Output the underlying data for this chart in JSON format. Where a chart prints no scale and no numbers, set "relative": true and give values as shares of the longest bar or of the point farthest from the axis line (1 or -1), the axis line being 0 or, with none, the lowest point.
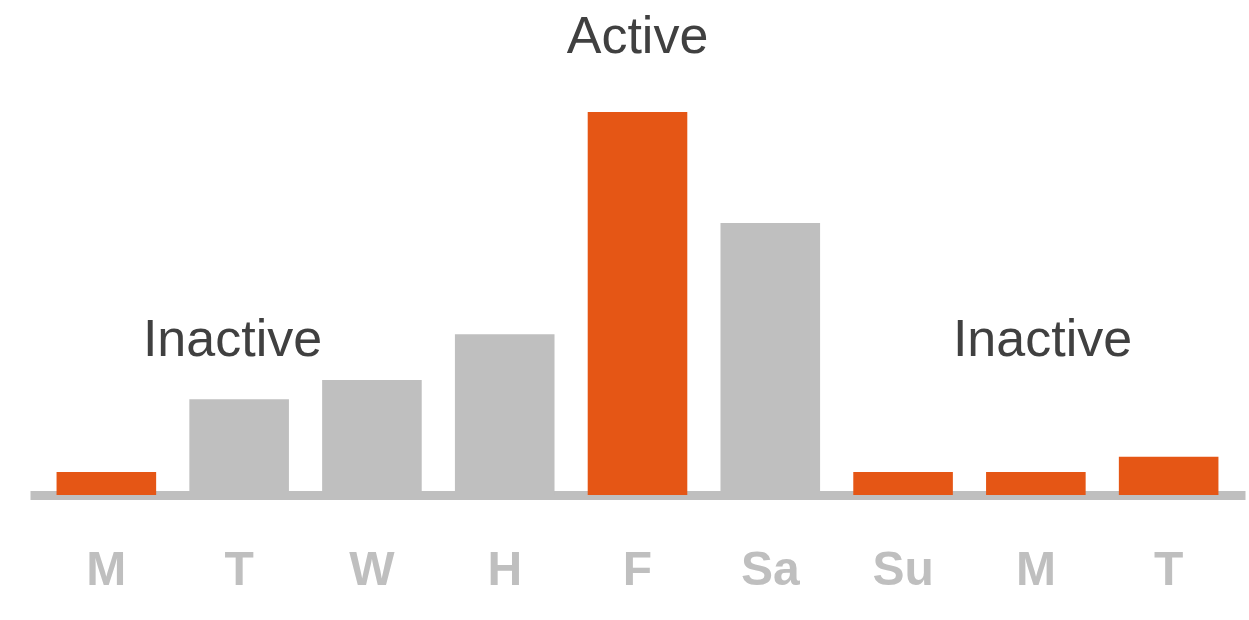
{
  "chart_data": {
    "type": "bar",
    "relative": true,
    "categories": [
      "M",
      "T",
      "W",
      "H",
      "F",
      "Sa",
      "Su",
      "M",
      "T"
    ],
    "values": [
      0.06,
      0.25,
      0.3,
      0.42,
      1,
      0.71,
      0.06,
      0.06,
      0.1
    ],
    "colors": [
      "#e55615",
      "#bfbfbf",
      "#bfbfbf",
      "#bfbfbf",
      "#e55615",
      "#bfbfbf",
      "#e55615",
      "#e55615",
      "#e55615"
    ],
    "annotations": [
      "Inactive",
      "Active",
      "Inactive"
    ],
    "grid": false,
    "legend": false
  }
}
